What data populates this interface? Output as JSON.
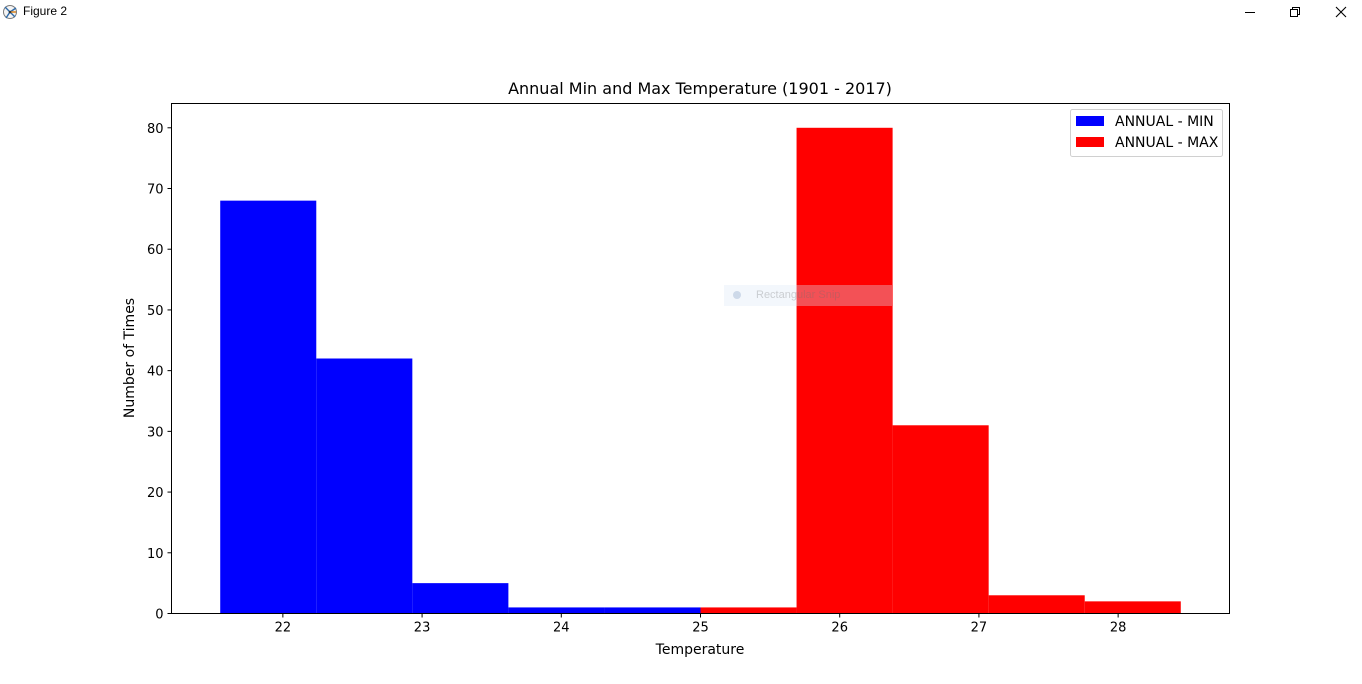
{
  "window": {
    "title": "Figure 2",
    "app_icon": "matplotlib-figure-icon",
    "controls": [
      "minimize-icon",
      "restore-icon",
      "close-icon"
    ]
  },
  "overlay": {
    "snip_label": "Rectangular Snip"
  },
  "chart_data": {
    "type": "bar",
    "title": "Annual Min and Max Temperature (1901 - 2017)",
    "xlabel": "Temperature",
    "ylabel": "Number of Times",
    "xlim": [
      21.2,
      28.8
    ],
    "ylim": [
      0,
      84
    ],
    "xticks": [
      22,
      23,
      24,
      25,
      26,
      27,
      28
    ],
    "yticks": [
      0,
      10,
      20,
      30,
      40,
      50,
      60,
      70,
      80
    ],
    "grid": false,
    "legend_position": "top-right",
    "series": [
      {
        "name": "ANNUAL - MIN",
        "color": "#0000ff",
        "bin_edges": [
          21.55,
          22.24,
          22.93,
          23.62,
          24.31,
          25.0
        ],
        "values": [
          68,
          42,
          5,
          1,
          1
        ]
      },
      {
        "name": "ANNUAL - MAX",
        "color": "#ff0000",
        "bin_edges": [
          25.0,
          25.69,
          26.38,
          27.07,
          27.76,
          28.45
        ],
        "values": [
          1,
          80,
          31,
          3,
          2
        ]
      }
    ]
  }
}
